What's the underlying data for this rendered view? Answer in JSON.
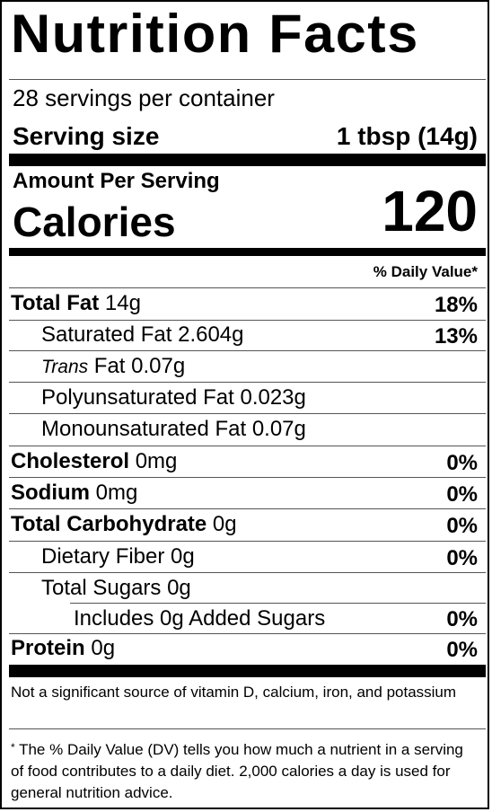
{
  "title": "Nutrition Facts",
  "servings_per_container": "28 servings per container",
  "serving_size": {
    "label": "Serving size",
    "value": "1 tbsp (14g)"
  },
  "amount_per_serving": "Amount Per Serving",
  "calories": {
    "label": "Calories",
    "value": "120"
  },
  "daily_value_header": "% Daily Value*",
  "nutrients": {
    "total_fat": {
      "name": "Total Fat",
      "amount": "14g",
      "dv": "18%"
    },
    "saturated_fat": {
      "name": "Saturated Fat",
      "amount": "2.604g",
      "dv": "13%"
    },
    "trans_fat": {
      "prefix": "Trans",
      "name": "Fat",
      "amount": "0.07g"
    },
    "polyunsaturated_fat": {
      "name": "Polyunsaturated Fat",
      "amount": "0.023g"
    },
    "monounsaturated_fat": {
      "name": "Monounsaturated Fat",
      "amount": "0.07g"
    },
    "cholesterol": {
      "name": "Cholesterol",
      "amount": "0mg",
      "dv": "0%"
    },
    "sodium": {
      "name": "Sodium",
      "amount": "0mg",
      "dv": "0%"
    },
    "total_carbohydrate": {
      "name": "Total Carbohydrate",
      "amount": "0g",
      "dv": "0%"
    },
    "dietary_fiber": {
      "name": "Dietary Fiber",
      "amount": "0g",
      "dv": "0%"
    },
    "total_sugars": {
      "name": "Total Sugars",
      "amount": "0g"
    },
    "added_sugars": {
      "name": "Includes 0g Added Sugars",
      "dv": "0%"
    },
    "protein": {
      "name": "Protein",
      "amount": "0g",
      "dv": "0%"
    }
  },
  "footnote_micronutrients": "Not a significant source of vitamin D, calcium, iron, and potassium",
  "footnote_star": "*",
  "footnote_dv": "The % Daily Value (DV) tells you how much a nutrient in a serving of food contributes to a daily diet. 2,000 calories a day is used for general nutrition advice."
}
